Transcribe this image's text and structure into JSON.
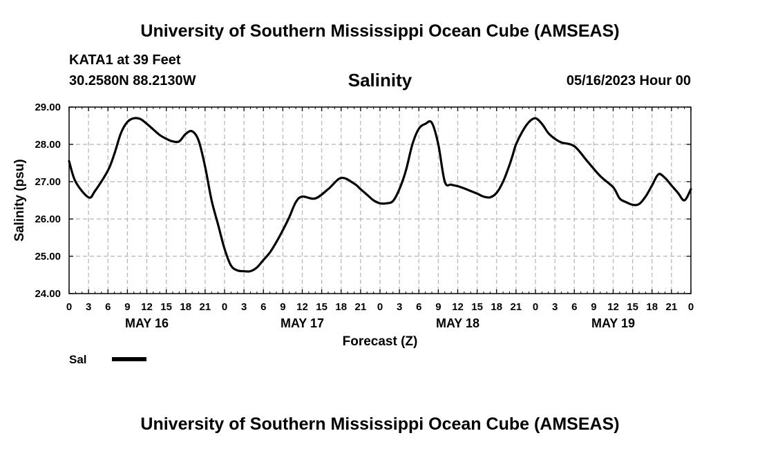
{
  "header": {
    "title": "University of Southern Mississippi Ocean Cube (AMSEAS)",
    "station": "KATA1 at 39 Feet",
    "coordinates": "30.2580N  88.2130W",
    "run_date": "05/16/2023 Hour 00"
  },
  "footer": {
    "title": "University of Southern Mississippi Ocean Cube (AMSEAS)"
  },
  "legend": {
    "entries": [
      {
        "label": "Sal",
        "color": "#000000"
      }
    ]
  },
  "chart_data": {
    "type": "line",
    "title": "Salinity",
    "xlabel": "Forecast (Z)",
    "ylabel": "Salinity (psu)",
    "xlim": [
      0,
      96
    ],
    "ylim": [
      24.0,
      29.0
    ],
    "grid": true,
    "legend_position": "bottom-left",
    "y_ticks": [
      "24.00",
      "25.00",
      "26.00",
      "27.00",
      "28.00",
      "29.00"
    ],
    "x_ticks": [
      "0",
      "3",
      "6",
      "9",
      "12",
      "15",
      "18",
      "21",
      "0",
      "3",
      "6",
      "9",
      "12",
      "15",
      "18",
      "21",
      "0",
      "3",
      "6",
      "9",
      "12",
      "15",
      "18",
      "21",
      "0",
      "3",
      "6",
      "9",
      "12",
      "15",
      "18",
      "21",
      "0"
    ],
    "day_labels": [
      {
        "label": "MAY 16",
        "hour": 12
      },
      {
        "label": "MAY 17",
        "hour": 36
      },
      {
        "label": "MAY 18",
        "hour": 60
      },
      {
        "label": "MAY 19",
        "hour": 84
      }
    ],
    "series": [
      {
        "name": "Sal",
        "color": "#000000",
        "x": [
          0,
          1,
          3,
          4,
          6,
          7,
          8,
          9,
          10,
          11,
          12,
          13,
          14,
          15,
          16,
          17,
          18,
          19,
          20,
          21,
          22,
          23,
          24,
          25,
          26,
          27,
          28,
          29,
          30,
          31,
          32,
          33,
          34,
          35,
          36,
          38,
          40,
          42,
          44,
          45,
          46,
          47,
          48,
          49,
          50,
          51,
          52,
          53,
          54,
          55,
          56,
          57,
          58,
          59,
          60,
          61,
          62,
          63,
          64,
          65,
          66,
          67,
          68,
          68.5,
          69,
          70,
          71,
          72,
          73,
          74,
          75,
          76,
          78,
          80,
          82,
          84,
          85,
          86,
          87,
          88,
          89,
          90,
          91,
          92,
          93,
          94,
          95,
          96
        ],
        "values": [
          27.55,
          27.0,
          26.58,
          26.75,
          27.3,
          27.75,
          28.3,
          28.6,
          28.7,
          28.68,
          28.55,
          28.4,
          28.25,
          28.15,
          28.08,
          28.08,
          28.28,
          28.35,
          28.1,
          27.4,
          26.5,
          25.85,
          25.2,
          24.75,
          24.62,
          24.6,
          24.6,
          24.7,
          24.9,
          25.1,
          25.38,
          25.7,
          26.05,
          26.45,
          26.6,
          26.55,
          26.8,
          27.1,
          26.95,
          26.8,
          26.65,
          26.5,
          26.42,
          26.42,
          26.48,
          26.8,
          27.3,
          28.0,
          28.42,
          28.55,
          28.58,
          28.0,
          27.0,
          26.92,
          26.88,
          26.82,
          26.75,
          26.68,
          26.6,
          26.58,
          26.7,
          27.0,
          27.45,
          27.72,
          28.0,
          28.35,
          28.6,
          28.7,
          28.55,
          28.3,
          28.15,
          28.05,
          27.95,
          27.55,
          27.15,
          26.85,
          26.55,
          26.45,
          26.38,
          26.4,
          26.6,
          26.9,
          27.2,
          27.1,
          26.9,
          26.7,
          26.5,
          26.8
        ]
      }
    ]
  }
}
